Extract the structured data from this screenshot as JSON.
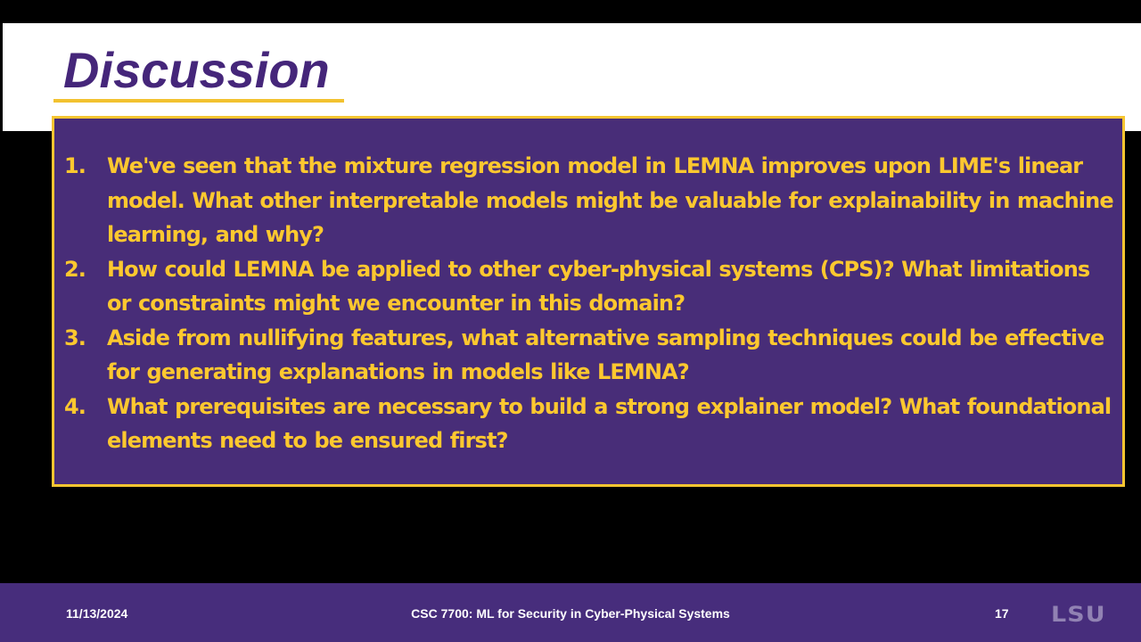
{
  "slide": {
    "title": "Discussion",
    "questions": [
      {
        "number": "1.",
        "text": "We've seen that the mixture regression model in LEMNA improves upon LIME's linear model. What other interpretable models might be valuable for explainability in machine learning, and why?"
      },
      {
        "number": "2.",
        "text": "How could LEMNA be applied to other cyber-physical systems (CPS)? What limitations or constraints might we encounter in this domain?"
      },
      {
        "number": "3.",
        "text": "Aside from nullifying features, what alternative sampling techniques could be effective for generating explanations in models like LEMNA?"
      },
      {
        "number": "4.",
        "text": "What prerequisites are necessary to build a strong explainer model? What foundational elements need to be ensured first?"
      }
    ]
  },
  "footer": {
    "date": "11/13/2024",
    "course": "CSC 7700: ML for Security in Cyber-Physical Systems",
    "page_number": "17",
    "logo_text": "LSU"
  },
  "colors": {
    "purple": "#482d78",
    "gold": "#fdc82f",
    "white": "#ffffff",
    "black": "#000000"
  }
}
